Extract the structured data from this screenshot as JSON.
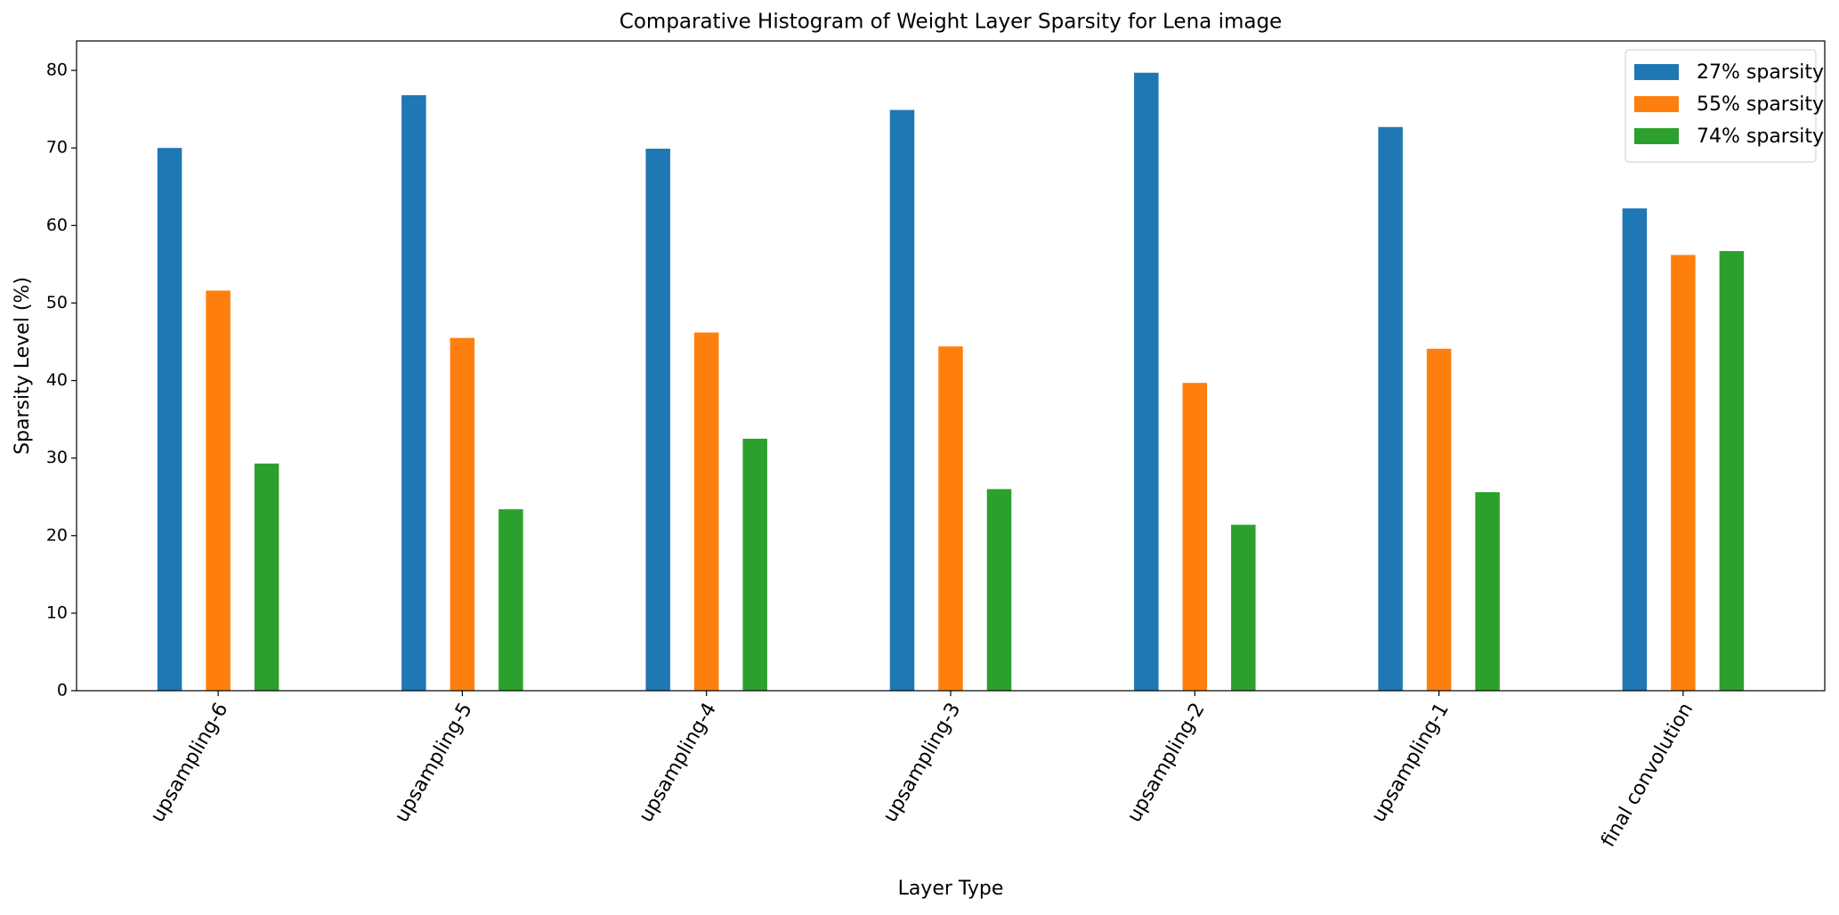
{
  "chart_data": {
    "type": "bar",
    "title": "Comparative Histogram of Weight Layer Sparsity for Lena image",
    "x_label": "Layer Type",
    "y_label": "Sparsity Level (%)",
    "categories": [
      "upsampling-6",
      "upsampling-5",
      "upsampling-4",
      "upsampling-3",
      "upsampling-2",
      "upsampling-1",
      "final convolution"
    ],
    "series": [
      {
        "name": "27% sparsity",
        "color": "#1f77b4",
        "values": [
          70.0,
          76.8,
          69.9,
          74.9,
          79.7,
          72.7,
          62.2
        ]
      },
      {
        "name": "55% sparsity",
        "color": "#ff7f0e",
        "values": [
          51.6,
          45.5,
          46.2,
          44.4,
          39.7,
          44.1,
          56.2
        ]
      },
      {
        "name": "74% sparsity",
        "color": "#2ca02c",
        "values": [
          29.3,
          23.4,
          32.5,
          26.0,
          21.4,
          25.6,
          56.7
        ]
      }
    ],
    "ylim": [
      0,
      83.8
    ],
    "yticks": [
      0,
      10,
      20,
      30,
      40,
      50,
      60,
      70,
      80
    ],
    "grid": false,
    "legend": "upper right"
  }
}
